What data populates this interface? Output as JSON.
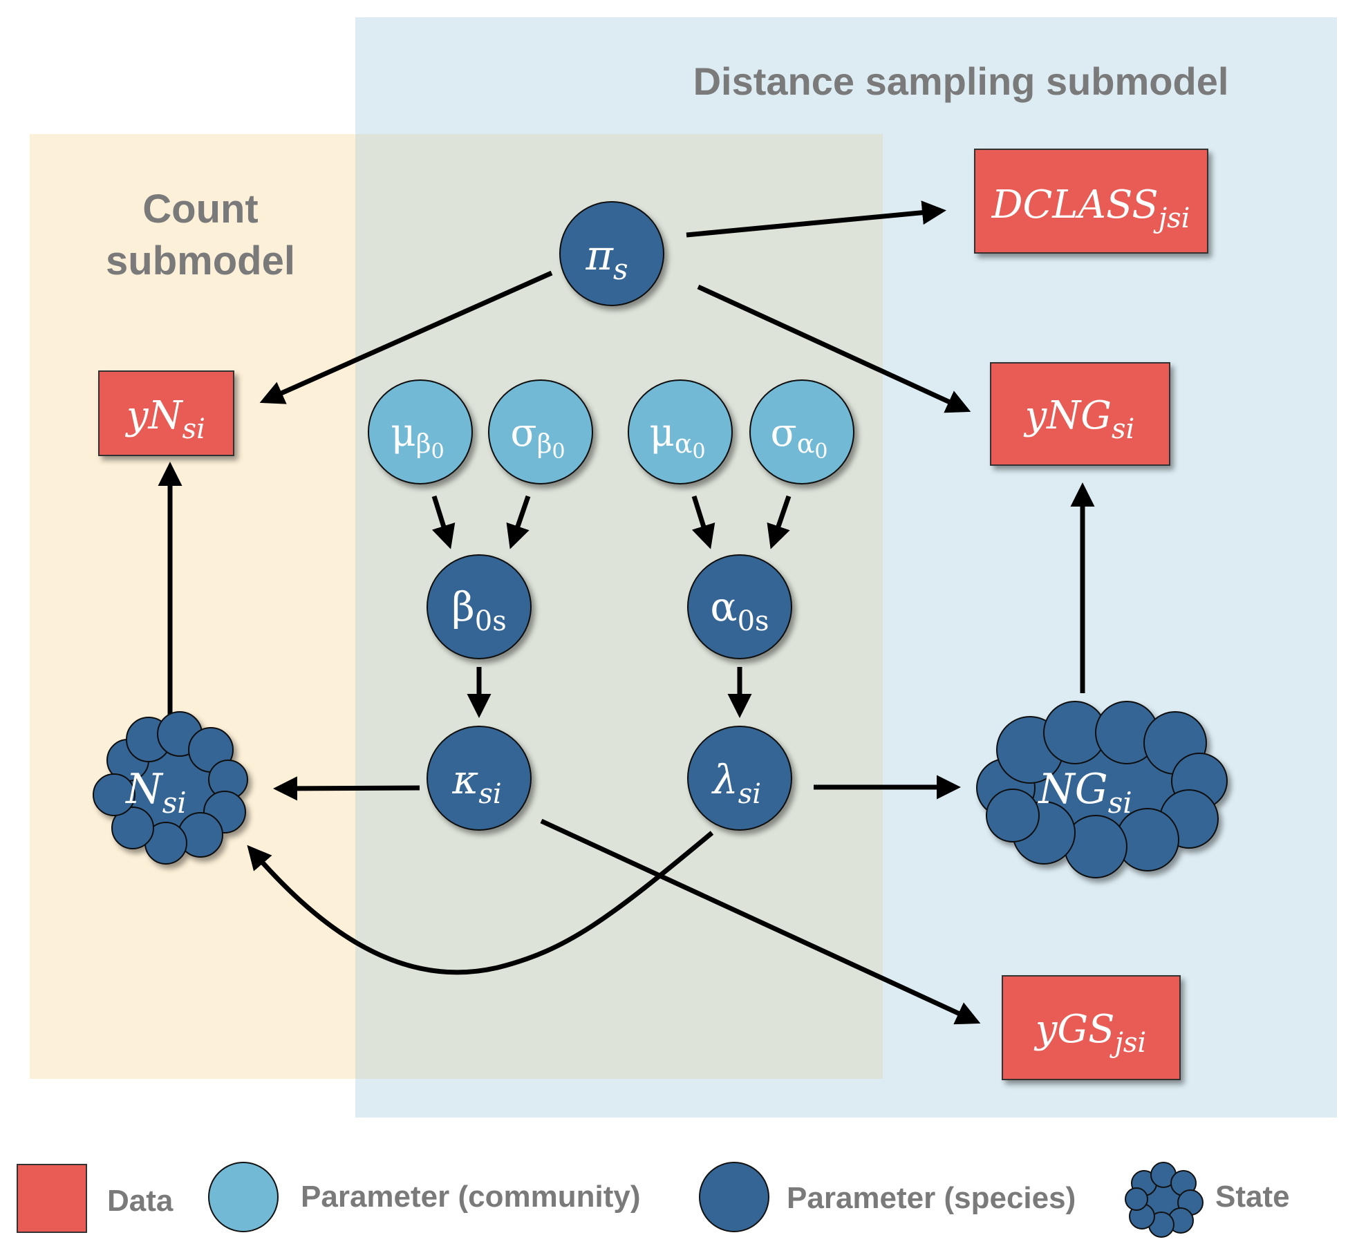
{
  "colors": {
    "data": "#e85c55",
    "parameter_community": "#72b9d5",
    "parameter_species": "#356595",
    "state": "#356595",
    "count_region": "#fdf0d8",
    "distance_region": "#dcecf2",
    "overlap_region": "#dde3d8",
    "label_gray": "#7a7a7a"
  },
  "regions": {
    "distance": {
      "label": "Distance sampling submodel"
    },
    "count": {
      "label_line1": "Count",
      "label_line2": "submodel"
    }
  },
  "nodes": {
    "pi": {
      "base": "π",
      "sub": "s",
      "type": "parameter-species"
    },
    "mu_beta": {
      "base": "μ",
      "sub": "β",
      "subsub": "0",
      "type": "parameter-community"
    },
    "sigma_beta": {
      "base": "σ",
      "sub": "β",
      "subsub": "0",
      "type": "parameter-community"
    },
    "mu_alpha": {
      "base": "μ",
      "sub": "α",
      "subsub": "0",
      "type": "parameter-community"
    },
    "sigma_alpha": {
      "base": "σ",
      "sub": "α",
      "subsub": "0",
      "type": "parameter-community"
    },
    "beta0": {
      "base": "β",
      "sub": "0s",
      "type": "parameter-species"
    },
    "alpha0": {
      "base": "α",
      "sub": "0s",
      "type": "parameter-species"
    },
    "kappa": {
      "base": "κ",
      "sub": "si",
      "type": "parameter-species"
    },
    "lambda": {
      "base": "λ",
      "sub": "si",
      "type": "parameter-species"
    },
    "N": {
      "base": "N",
      "sub": "si",
      "type": "state"
    },
    "NG": {
      "base": "NG",
      "sub": "si",
      "type": "state"
    },
    "yN": {
      "base": "yN",
      "sub": "si",
      "type": "data"
    },
    "yNG": {
      "base": "yNG",
      "sub": "si",
      "type": "data"
    },
    "DCLASS": {
      "base": "DCLASS",
      "sub": "jsi",
      "type": "data"
    },
    "yGS": {
      "base": "yGS",
      "sub": "jsi",
      "type": "data"
    }
  },
  "edges": [
    [
      "pi",
      "DCLASS"
    ],
    [
      "pi",
      "yN"
    ],
    [
      "pi",
      "yNG"
    ],
    [
      "mu_beta",
      "beta0"
    ],
    [
      "sigma_beta",
      "beta0"
    ],
    [
      "mu_alpha",
      "alpha0"
    ],
    [
      "sigma_alpha",
      "alpha0"
    ],
    [
      "beta0",
      "kappa"
    ],
    [
      "alpha0",
      "lambda"
    ],
    [
      "kappa",
      "N"
    ],
    [
      "kappa",
      "yGS"
    ],
    [
      "lambda",
      "NG"
    ],
    [
      "lambda",
      "N"
    ],
    [
      "N",
      "yN"
    ],
    [
      "NG",
      "yNG"
    ]
  ],
  "legend": {
    "data": "Data",
    "parameter_community": "Parameter (community)",
    "parameter_species": "Parameter (species)",
    "state": "State"
  }
}
